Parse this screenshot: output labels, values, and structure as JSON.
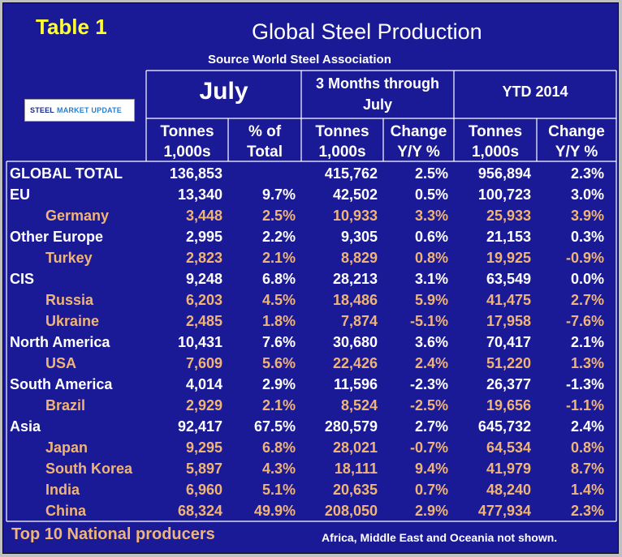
{
  "table_label": "Table 1",
  "title": "Global Steel Production",
  "source": "Source World Steel Association",
  "logo": {
    "line1": "STEEL",
    "line2": "MARKET UPDATE"
  },
  "headers": {
    "july": "July",
    "three_months_l1": "3 Months through",
    "three_months_l2": "July",
    "ytd": "YTD 2014",
    "sub": [
      {
        "l1": "Tonnes",
        "l2": "1,000s"
      },
      {
        "l1": "% of",
        "l2": "Total"
      },
      {
        "l1": "Tonnes",
        "l2": "1,000s"
      },
      {
        "l1": "Change",
        "l2": "Y/Y %"
      },
      {
        "l1": "Tonnes",
        "l2": "1,000s"
      },
      {
        "l1": "Change",
        "l2": "Y/Y %"
      }
    ]
  },
  "rows": [
    {
      "name": "GLOBAL TOTAL",
      "level": "region",
      "july_tonnes": "136,853",
      "july_pct": "",
      "m3_tonnes": "415,762",
      "m3_change": "2.5%",
      "ytd_tonnes": "956,894",
      "ytd_change": "2.3%"
    },
    {
      "name": "EU",
      "level": "region",
      "july_tonnes": "13,340",
      "july_pct": "9.7%",
      "m3_tonnes": "42,502",
      "m3_change": "0.5%",
      "ytd_tonnes": "100,723",
      "ytd_change": "3.0%"
    },
    {
      "name": "Germany",
      "level": "country",
      "july_tonnes": "3,448",
      "july_pct": "2.5%",
      "m3_tonnes": "10,933",
      "m3_change": "3.3%",
      "ytd_tonnes": "25,933",
      "ytd_change": "3.9%"
    },
    {
      "name": "Other Europe",
      "level": "region",
      "july_tonnes": "2,995",
      "july_pct": "2.2%",
      "m3_tonnes": "9,305",
      "m3_change": "0.6%",
      "ytd_tonnes": "21,153",
      "ytd_change": "0.3%"
    },
    {
      "name": "Turkey",
      "level": "country",
      "july_tonnes": "2,823",
      "july_pct": "2.1%",
      "m3_tonnes": "8,829",
      "m3_change": "0.8%",
      "ytd_tonnes": "19,925",
      "ytd_change": "-0.9%"
    },
    {
      "name": "CIS",
      "level": "region",
      "july_tonnes": "9,248",
      "july_pct": "6.8%",
      "m3_tonnes": "28,213",
      "m3_change": "3.1%",
      "ytd_tonnes": "63,549",
      "ytd_change": "0.0%"
    },
    {
      "name": "Russia",
      "level": "country",
      "july_tonnes": "6,203",
      "july_pct": "4.5%",
      "m3_tonnes": "18,486",
      "m3_change": "5.9%",
      "ytd_tonnes": "41,475",
      "ytd_change": "2.7%"
    },
    {
      "name": "Ukraine",
      "level": "country",
      "july_tonnes": "2,485",
      "july_pct": "1.8%",
      "m3_tonnes": "7,874",
      "m3_change": "-5.1%",
      "ytd_tonnes": "17,958",
      "ytd_change": "-7.6%"
    },
    {
      "name": "North America",
      "level": "region",
      "july_tonnes": "10,431",
      "july_pct": "7.6%",
      "m3_tonnes": "30,680",
      "m3_change": "3.6%",
      "ytd_tonnes": "70,417",
      "ytd_change": "2.1%"
    },
    {
      "name": "USA",
      "level": "country",
      "july_tonnes": "7,609",
      "july_pct": "5.6%",
      "m3_tonnes": "22,426",
      "m3_change": "2.4%",
      "ytd_tonnes": "51,220",
      "ytd_change": "1.3%"
    },
    {
      "name": "South America",
      "level": "region",
      "july_tonnes": "4,014",
      "july_pct": "2.9%",
      "m3_tonnes": "11,596",
      "m3_change": "-2.3%",
      "ytd_tonnes": "26,377",
      "ytd_change": "-1.3%"
    },
    {
      "name": "Brazil",
      "level": "country",
      "july_tonnes": "2,929",
      "july_pct": "2.1%",
      "m3_tonnes": "8,524",
      "m3_change": "-2.5%",
      "ytd_tonnes": "19,656",
      "ytd_change": "-1.1%"
    },
    {
      "name": "Asia",
      "level": "region",
      "july_tonnes": "92,417",
      "july_pct": "67.5%",
      "m3_tonnes": "280,579",
      "m3_change": "2.7%",
      "ytd_tonnes": "645,732",
      "ytd_change": "2.4%"
    },
    {
      "name": "Japan",
      "level": "country",
      "july_tonnes": "9,295",
      "july_pct": "6.8%",
      "m3_tonnes": "28,021",
      "m3_change": "-0.7%",
      "ytd_tonnes": "64,534",
      "ytd_change": "0.8%"
    },
    {
      "name": "South Korea",
      "level": "country",
      "july_tonnes": "5,897",
      "july_pct": "4.3%",
      "m3_tonnes": "18,111",
      "m3_change": "9.4%",
      "ytd_tonnes": "41,979",
      "ytd_change": "8.7%"
    },
    {
      "name": "India",
      "level": "country",
      "july_tonnes": "6,960",
      "july_pct": "5.1%",
      "m3_tonnes": "20,635",
      "m3_change": "0.7%",
      "ytd_tonnes": "48,240",
      "ytd_change": "1.4%"
    },
    {
      "name": "China",
      "level": "country",
      "july_tonnes": "68,324",
      "july_pct": "49.9%",
      "m3_tonnes": "208,050",
      "m3_change": "2.9%",
      "ytd_tonnes": "477,934",
      "ytd_change": "2.3%"
    }
  ],
  "footer_left": "Top 10 National producers",
  "footer_right": "Africa, Middle East and Oceania not shown.",
  "colors": {
    "background": "#1a1a96",
    "title_yellow": "#ffff33",
    "country_tan": "#f0b478",
    "text": "#ffffff"
  }
}
